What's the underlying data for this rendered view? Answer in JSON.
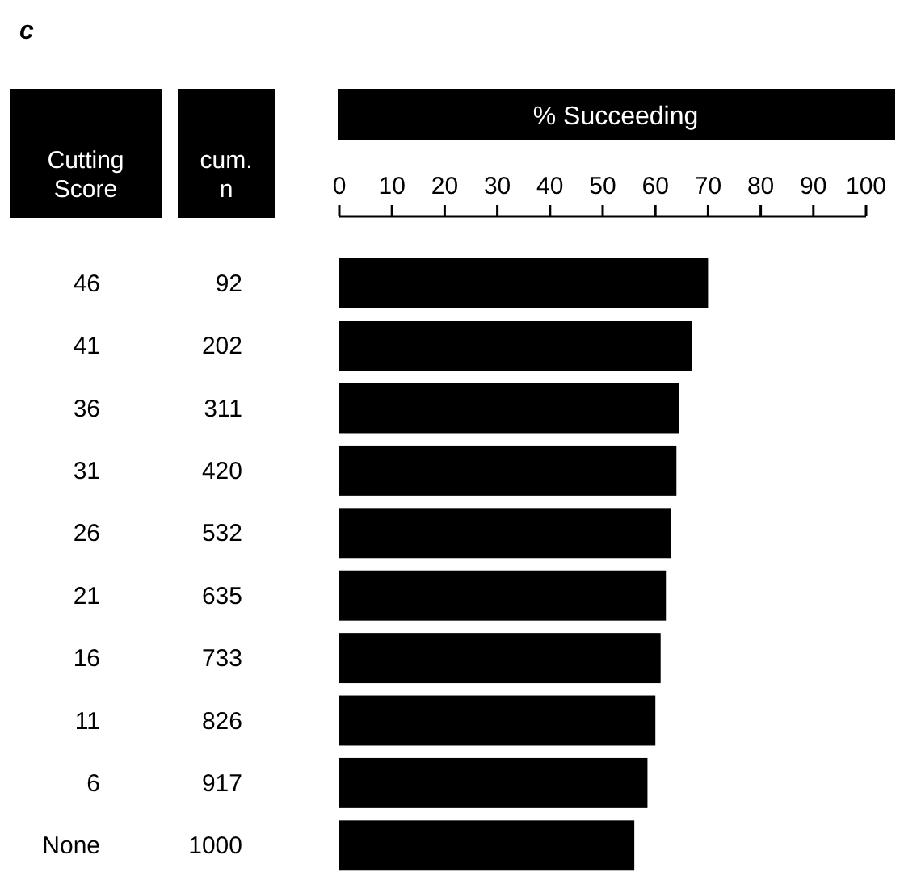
{
  "chart_data": {
    "type": "bar",
    "orientation": "horizontal",
    "title": "c",
    "xlabel": "% Succeeding",
    "ylabel": "Cutting Score",
    "y2label": "cum. n",
    "categories": [
      "46",
      "41",
      "36",
      "31",
      "26",
      "21",
      "16",
      "11",
      "6",
      "None"
    ],
    "y2_categories": [
      "92",
      "202",
      "311",
      "420",
      "532",
      "635",
      "733",
      "826",
      "917",
      "1000"
    ],
    "series": [
      {
        "color": "#000000",
        "axis": "x2",
        "values": [
          70,
          67,
          64.5,
          64,
          63,
          62,
          61,
          60,
          58.5,
          56
        ]
      }
    ],
    "x2lim": [
      0,
      100
    ],
    "x2ticks": [
      0,
      10,
      20,
      30,
      40,
      50,
      60,
      70,
      80,
      90,
      100
    ],
    "grid": false
  }
}
